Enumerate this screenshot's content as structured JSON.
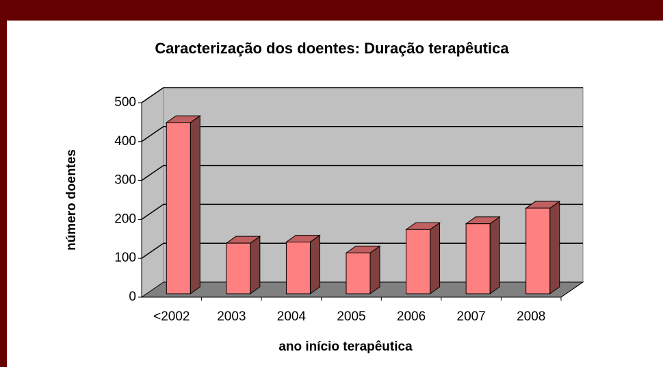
{
  "chart_data": {
    "type": "bar3d",
    "title": "Caracterização dos doentes: Duração terapêutica",
    "x_label": "ano início terapêutica",
    "y_label": "número doentes",
    "categories": [
      "<2002",
      "2003",
      "2004",
      "2005",
      "2006",
      "2007",
      "2008"
    ],
    "values": [
      440,
      130,
      133,
      105,
      165,
      180,
      220
    ],
    "color": "#ff8080",
    "ylim": [
      0,
      500
    ],
    "yticks": [
      0,
      100,
      200,
      300,
      400,
      500
    ],
    "grid": true
  }
}
